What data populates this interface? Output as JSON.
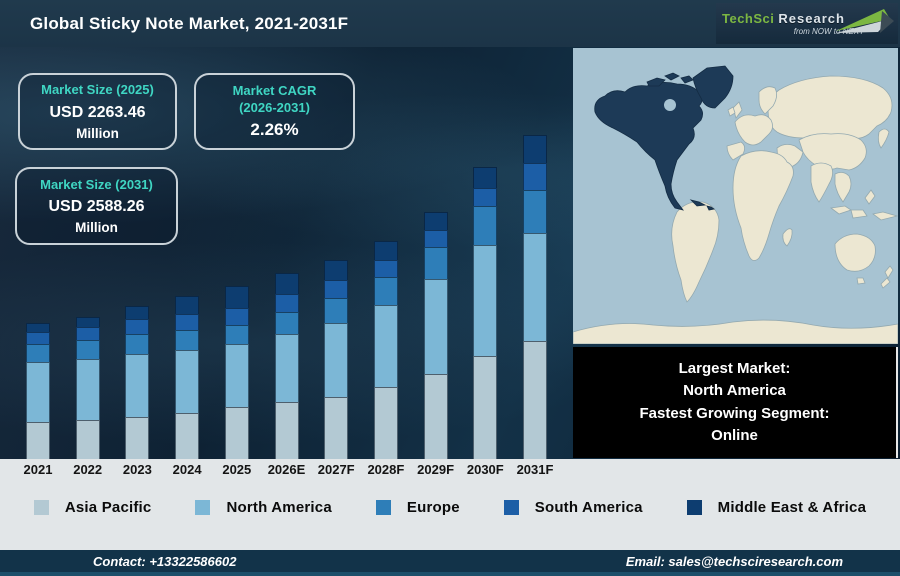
{
  "header": {
    "title": "Global Sticky Note Market, 2021-2031F",
    "logo": {
      "brand": "TechSci",
      "brand2": "Research",
      "tagline": "from NOW to NEXT"
    }
  },
  "stats": {
    "size_2025": {
      "label": "Market Size (2025)",
      "value": "USD 2263.46",
      "unit": "Million"
    },
    "cagr": {
      "label_line1": "Market CAGR",
      "label_line2": "(2026-2031)",
      "value": "2.26%"
    },
    "size_2031": {
      "label": "Market Size (2031)",
      "value": "USD 2588.26",
      "unit": "Million"
    }
  },
  "chart_data": {
    "type": "bar",
    "stacked": true,
    "title": "Global Sticky Note Market, 2021-2031F",
    "categories": [
      "2021",
      "2022",
      "2023",
      "2024",
      "2025",
      "2026E",
      "2027F",
      "2028F",
      "2029F",
      "2030F",
      "2031F"
    ],
    "series": [
      {
        "name": "Asia Pacific",
        "color": "#b3c9d3",
        "values": [
          37,
          39,
          42,
          46,
          52,
          57,
          62,
          72,
          85,
          103,
          118
        ]
      },
      {
        "name": "North America",
        "color": "#7cb7d6",
        "values": [
          60,
          61,
          63,
          63,
          63,
          68,
          74,
          82,
          95,
          111,
          108
        ]
      },
      {
        "name": "Europe",
        "color": "#2e7eb8",
        "values": [
          18,
          19,
          20,
          20,
          19,
          22,
          25,
          28,
          32,
          39,
          43
        ]
      },
      {
        "name": "South America",
        "color": "#1c5ea6",
        "values": [
          12,
          13,
          15,
          16,
          17,
          18,
          18,
          17,
          17,
          18,
          27
        ]
      },
      {
        "name": "Middle East & Africa",
        "color": "#0d3d70",
        "values": [
          9,
          10,
          13,
          18,
          22,
          21,
          20,
          19,
          18,
          21,
          28
        ]
      }
    ],
    "xlabel": "",
    "ylabel": "",
    "axis_shown": false,
    "note": "Source shows no numeric y-axis; series values are bar-segment heights in screen pixels (relative market size by region).",
    "legend_position": "bottom",
    "annotations": {
      "market_size_2025": "USD 2263.46 Million",
      "market_size_2031": "USD 2588.26 Million",
      "cagr_2026_2031": "2.26%"
    }
  },
  "map": {
    "highlighted_region": "North America",
    "colors": {
      "ocean": "#a7c3d2",
      "land": "#ece7d2",
      "land_border": "#93a9b0",
      "highlight": "#1d3a57",
      "highlight_border": "#142c44"
    }
  },
  "callout": {
    "line1": "Largest Market:",
    "line2": "North America",
    "line3": "Fastest Growing Segment:",
    "line4": "Online"
  },
  "footer": {
    "contact": "Contact: +13322586602",
    "email": "Email: sales@techsciresearch.com"
  },
  "colors": {
    "accent_teal": "#3fd6c3",
    "brand_green": "#7cb742",
    "header_bg": "#1c3447",
    "footer_bg": "#123349",
    "strip_bg": "#e2e6e8"
  }
}
